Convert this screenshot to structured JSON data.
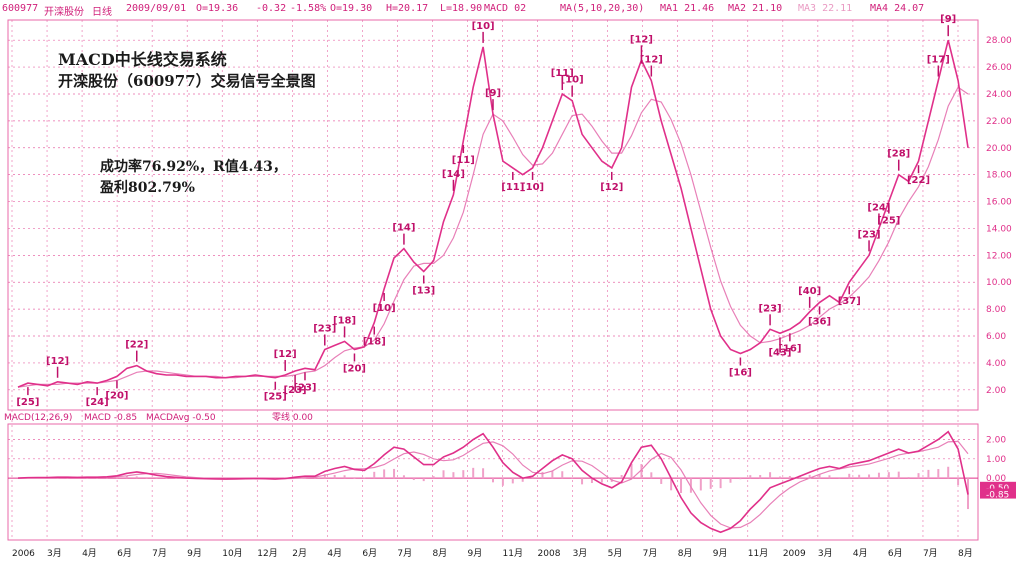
{
  "header": {
    "code": "600977",
    "name": "开滦股份",
    "period": "日线",
    "date": "2009/09/01",
    "o": "O=19.36",
    "chg": "-0.32",
    "pct": "-1.58%",
    "open": "O=19.30",
    "high": "H=20.17",
    "low": "L=18.90",
    "macd_label": "MACD 02",
    "ma_label": "MA(5,10,20,30)",
    "ma1": "MA1 21.46",
    "ma2": "MA2 21.10",
    "ma3": "MA3 22.11",
    "ma4": "MA4 24.07"
  },
  "title_line1": "MACD中长线交易系统",
  "title_line2": "开滦股份（600977）交易信号全景图",
  "stats_line1": "成功率76.92%，R值4.43，",
  "stats_line2": "盈利802.79%",
  "macd_header": {
    "params": "MACD(12,26,9)",
    "macd": "MACD -0.85",
    "avg": "MACDAvg -0.50",
    "zero": "零线 0.00"
  },
  "colors": {
    "line": "#e0308a",
    "dark": "#c0106a",
    "grid": "#e86aa8",
    "bg": "#ffffff",
    "text": "#1a1a1a"
  },
  "chart_data": {
    "type": "line",
    "title": "开滦股份（600977）交易信号全景图",
    "price_axis": {
      "ylim": [
        0.5,
        29.5
      ],
      "ticks": [
        "2.00",
        "4.00",
        "6.00",
        "8.00",
        "10.00",
        "12.00",
        "14.00",
        "16.00",
        "18.00",
        "20.00",
        "22.00",
        "24.00",
        "26.00",
        "28.00"
      ]
    },
    "macd_axis": {
      "ylim": [
        -3.2,
        2.8
      ],
      "ticks": [
        "2.00",
        "1.00",
        "0.00",
        "-0.50",
        "-0.85"
      ]
    },
    "x_labels": [
      "2006",
      "3月",
      "4月",
      "6月",
      "7月",
      "9月",
      "10月",
      "12月",
      "2月",
      "4月",
      "6月",
      "7月",
      "8月",
      "9月",
      "11月",
      "2008",
      "3月",
      "5月",
      "7月",
      "8月",
      "9月",
      "11月",
      "2009",
      "3月",
      "4月",
      "6月",
      "7月",
      "8月"
    ],
    "price": [
      2.2,
      2.5,
      2.4,
      2.3,
      2.6,
      2.5,
      2.4,
      2.6,
      2.5,
      2.7,
      3.0,
      3.6,
      3.8,
      3.4,
      3.2,
      3.1,
      3.1,
      3.0,
      3.0,
      3.0,
      2.9,
      2.9,
      3.0,
      3.0,
      3.1,
      3.0,
      2.9,
      3.1,
      3.4,
      3.6,
      3.5,
      5.0,
      5.3,
      5.6,
      5.0,
      5.2,
      7.0,
      9.5,
      11.8,
      12.5,
      11.5,
      10.8,
      11.6,
      14.5,
      16.5,
      20.5,
      24.5,
      27.5,
      22.5,
      19.0,
      18.5,
      18.0,
      18.5,
      20.0,
      22.0,
      24.0,
      23.5,
      21.0,
      20.0,
      19.0,
      18.5,
      20.0,
      24.5,
      26.5,
      25.0,
      22.0,
      19.5,
      17.0,
      14.0,
      11.0,
      8.0,
      6.0,
      5.0,
      4.7,
      5.0,
      5.5,
      6.5,
      6.2,
      6.5,
      7.0,
      7.8,
      8.5,
      9.0,
      8.5,
      10.0,
      11.0,
      12.0,
      14.0,
      16.0,
      18.0,
      17.5,
      19.0,
      22.0,
      25.0,
      28.0,
      25.0,
      20.0
    ],
    "ma": [
      2.2,
      2.3,
      2.4,
      2.4,
      2.4,
      2.5,
      2.5,
      2.5,
      2.5,
      2.6,
      2.7,
      3.0,
      3.3,
      3.4,
      3.4,
      3.3,
      3.2,
      3.1,
      3.0,
      3.0,
      3.0,
      2.9,
      2.9,
      3.0,
      3.0,
      3.0,
      3.0,
      3.0,
      3.1,
      3.3,
      3.4,
      3.8,
      4.4,
      4.9,
      5.1,
      5.2,
      5.7,
      6.9,
      8.6,
      10.2,
      11.2,
      11.4,
      11.4,
      12.0,
      13.3,
      15.2,
      18.0,
      21.0,
      22.5,
      22.0,
      20.8,
      19.5,
      18.7,
      18.8,
      19.6,
      21.0,
      22.4,
      22.5,
      21.6,
      20.5,
      19.6,
      19.6,
      20.9,
      22.6,
      23.6,
      23.4,
      22.1,
      20.3,
      18.0,
      15.3,
      12.6,
      10.1,
      8.2,
      6.8,
      6.0,
      5.5,
      5.6,
      5.8,
      6.1,
      6.4,
      6.8,
      7.4,
      8.0,
      8.4,
      8.9,
      9.6,
      10.4,
      11.6,
      13.0,
      14.7,
      16.0,
      17.1,
      18.6,
      20.6,
      23.1,
      24.5,
      24.0
    ],
    "macd": [
      0.0,
      0.02,
      0.03,
      0.03,
      0.05,
      0.05,
      0.04,
      0.05,
      0.05,
      0.07,
      0.12,
      0.25,
      0.32,
      0.25,
      0.15,
      0.08,
      0.04,
      0.0,
      -0.02,
      -0.03,
      -0.04,
      -0.05,
      -0.04,
      -0.03,
      -0.02,
      -0.03,
      -0.05,
      -0.02,
      0.05,
      0.1,
      0.1,
      0.35,
      0.5,
      0.6,
      0.45,
      0.4,
      0.75,
      1.2,
      1.6,
      1.5,
      1.1,
      0.7,
      0.7,
      1.1,
      1.3,
      1.6,
      2.0,
      2.3,
      1.6,
      0.8,
      0.3,
      0.0,
      0.1,
      0.5,
      0.9,
      1.2,
      1.0,
      0.4,
      0.0,
      -0.3,
      -0.5,
      -0.2,
      0.8,
      1.6,
      1.7,
      1.0,
      0.0,
      -1.0,
      -1.8,
      -2.3,
      -2.6,
      -2.8,
      -2.6,
      -2.2,
      -1.6,
      -1.1,
      -0.5,
      -0.3,
      -0.1,
      0.1,
      0.3,
      0.5,
      0.6,
      0.5,
      0.7,
      0.8,
      0.9,
      1.1,
      1.3,
      1.5,
      1.3,
      1.4,
      1.7,
      2.0,
      2.4,
      1.5,
      -0.85
    ],
    "signals": [
      {
        "i": 1,
        "label": "[25]",
        "pos": "below"
      },
      {
        "i": 4,
        "label": "[12]",
        "pos": "above"
      },
      {
        "i": 8,
        "label": "[24]",
        "pos": "below"
      },
      {
        "i": 10,
        "label": "[20]",
        "pos": "below"
      },
      {
        "i": 12,
        "label": "[22]",
        "pos": "above"
      },
      {
        "i": 26,
        "label": "[25]",
        "pos": "below"
      },
      {
        "i": 27,
        "label": "[12]",
        "pos": "above"
      },
      {
        "i": 28,
        "label": "[23]",
        "pos": "below"
      },
      {
        "i": 29,
        "label": "[23]",
        "pos": "below"
      },
      {
        "i": 31,
        "label": "[23]",
        "pos": "above"
      },
      {
        "i": 33,
        "label": "[18]",
        "pos": "above"
      },
      {
        "i": 34,
        "label": "[20]",
        "pos": "below"
      },
      {
        "i": 36,
        "label": "[18]",
        "pos": "below"
      },
      {
        "i": 37,
        "label": "[10]",
        "pos": "below"
      },
      {
        "i": 39,
        "label": "[14]",
        "pos": "above"
      },
      {
        "i": 41,
        "label": "[13]",
        "pos": "below"
      },
      {
        "i": 44,
        "label": "[14]",
        "pos": "above"
      },
      {
        "i": 45,
        "label": "[11]",
        "pos": "below"
      },
      {
        "i": 47,
        "label": "[10]",
        "pos": "above"
      },
      {
        "i": 48,
        "label": "[9]",
        "pos": "above"
      },
      {
        "i": 50,
        "label": "[11]",
        "pos": "below"
      },
      {
        "i": 52,
        "label": "[10]",
        "pos": "below"
      },
      {
        "i": 55,
        "label": "[11]",
        "pos": "above"
      },
      {
        "i": 56,
        "label": "[10]",
        "pos": "above"
      },
      {
        "i": 60,
        "label": "[12]",
        "pos": "below"
      },
      {
        "i": 63,
        "label": "[12]",
        "pos": "above"
      },
      {
        "i": 64,
        "label": "[12]",
        "pos": "above"
      },
      {
        "i": 73,
        "label": "[16]",
        "pos": "below"
      },
      {
        "i": 76,
        "label": "[23]",
        "pos": "above"
      },
      {
        "i": 77,
        "label": "[43]",
        "pos": "below"
      },
      {
        "i": 78,
        "label": "[16]",
        "pos": "below"
      },
      {
        "i": 80,
        "label": "[40]",
        "pos": "above"
      },
      {
        "i": 81,
        "label": "[36]",
        "pos": "below"
      },
      {
        "i": 84,
        "label": "[37]",
        "pos": "below"
      },
      {
        "i": 86,
        "label": "[23]",
        "pos": "above"
      },
      {
        "i": 87,
        "label": "[24]",
        "pos": "above"
      },
      {
        "i": 88,
        "label": "[25]",
        "pos": "below"
      },
      {
        "i": 89,
        "label": "[28]",
        "pos": "above"
      },
      {
        "i": 91,
        "label": "[22]",
        "pos": "below"
      },
      {
        "i": 93,
        "label": "[17]",
        "pos": "above"
      },
      {
        "i": 94,
        "label": "[9]",
        "pos": "above"
      }
    ]
  }
}
